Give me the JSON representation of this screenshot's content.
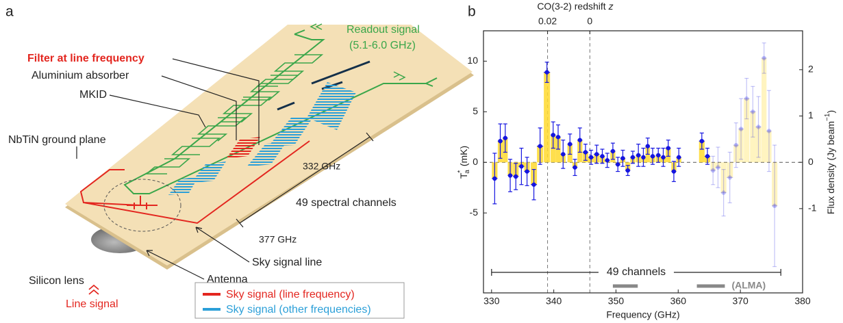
{
  "panel_a": {
    "label": "a",
    "readout": [
      "Readout signal",
      "(5.1-6.0 GHz)"
    ],
    "filter": "Filter at line frequency",
    "absorber": "Aluminium absorber",
    "mkid": "MKID",
    "ground": "NbTiN ground plane",
    "freq_high": "332 GHz",
    "channels": "49 spectral channels",
    "freq_low": "377 GHz",
    "sky_line": "Sky signal line",
    "antenna": "Antenna",
    "lens": "Silicon lens",
    "line_signal": "Line signal",
    "legend": [
      "Sky signal (line frequency)",
      "Sky signal (other frequencies)"
    ]
  },
  "chart_data": {
    "type": "errorbar",
    "panel_label": "b",
    "xlabel": "Frequency (GHz)",
    "ylabel": {
      "symbol": "T",
      "sup": "*",
      "sub": "a",
      "unit": "(mK)"
    },
    "y2label": {
      "text": "Flux density (Jy beam",
      "sup": "−1",
      "end": ")"
    },
    "x2label": {
      "text": "CO(3-2) redshift",
      "var": "z"
    },
    "xlim": [
      328.7,
      380
    ],
    "xticks": [
      330,
      340,
      350,
      360,
      370,
      380
    ],
    "ylim": [
      -12.9,
      13
    ],
    "yticks": [
      -5,
      0,
      5,
      10
    ],
    "y2lim": [
      -2.82,
      2.84
    ],
    "y2ticks": [
      -1,
      0,
      1,
      2
    ],
    "x2ticks": [
      {
        "value": 339.0,
        "label": "0.02"
      },
      {
        "value": 345.8,
        "label": "0"
      }
    ],
    "bar_color": "#ffd92e",
    "series": [
      {
        "color": "#1414e0",
        "opacity": 1,
        "x": [
          330.5,
          331.4,
          332.2,
          333.0,
          333.9,
          334.8,
          335.7,
          336.8,
          337.8,
          338.9,
          339.9,
          340.7,
          341.5,
          342.6,
          343.4,
          344.2,
          345.1,
          346.0,
          346.9,
          347.8,
          348.6,
          349.5,
          350.3,
          351.1,
          351.9,
          352.7,
          353.6,
          354.4,
          355.1,
          355.9,
          356.8,
          357.6,
          358.4,
          359.3,
          360.1,
          363.8,
          364.7
        ],
        "values": [
          -1.6,
          2.1,
          2.4,
          -1.3,
          -1.4,
          -0.4,
          -0.9,
          -2.2,
          1.6,
          8.9,
          2.7,
          2.5,
          0.8,
          1.8,
          -0.5,
          2.2,
          1.0,
          0.5,
          0.8,
          0.6,
          0.2,
          1.1,
          -0.2,
          0.4,
          -0.8,
          0.5,
          0.7,
          0.5,
          1.6,
          0.6,
          0.7,
          0.5,
          1.4,
          -0.9,
          0.5,
          2.1,
          0.6
        ],
        "errors": [
          2.5,
          1.7,
          1.4,
          1.6,
          1.3,
          1.8,
          1.4,
          1.5,
          1.8,
          1.0,
          1.3,
          1.2,
          1.4,
          1.0,
          0.8,
          1.2,
          0.8,
          0.7,
          0.9,
          0.7,
          0.7,
          0.8,
          0.7,
          0.8,
          0.5,
          0.6,
          1.1,
          0.9,
          0.8,
          0.8,
          0.7,
          0.9,
          0.8,
          1.0,
          0.9,
          0.8,
          0.8
        ]
      },
      {
        "color": "#1414e0",
        "opacity": 0.25,
        "x": [
          365.6,
          366.4,
          367.3,
          368.3,
          369.3,
          370.1,
          371.0,
          372.0,
          372.9,
          373.8,
          374.6,
          375.5
        ],
        "values": [
          -0.8,
          -0.5,
          -3.0,
          -1.5,
          1.7,
          3.3,
          6.3,
          5.0,
          3.5,
          10.3,
          3.1,
          -4.3
        ],
        "errors": [
          1.4,
          2.0,
          2.3,
          2.5,
          2.2,
          3.0,
          2.0,
          2.5,
          3.0,
          1.5,
          4.0,
          6.0
        ]
      }
    ],
    "span": {
      "text": "49 channels",
      "x": [
        330,
        376.5
      ]
    },
    "alma": {
      "text": "(ALMA)",
      "color": "#888888",
      "ranges": [
        [
          349.5,
          353.5
        ],
        [
          363,
          367.5
        ]
      ]
    }
  }
}
